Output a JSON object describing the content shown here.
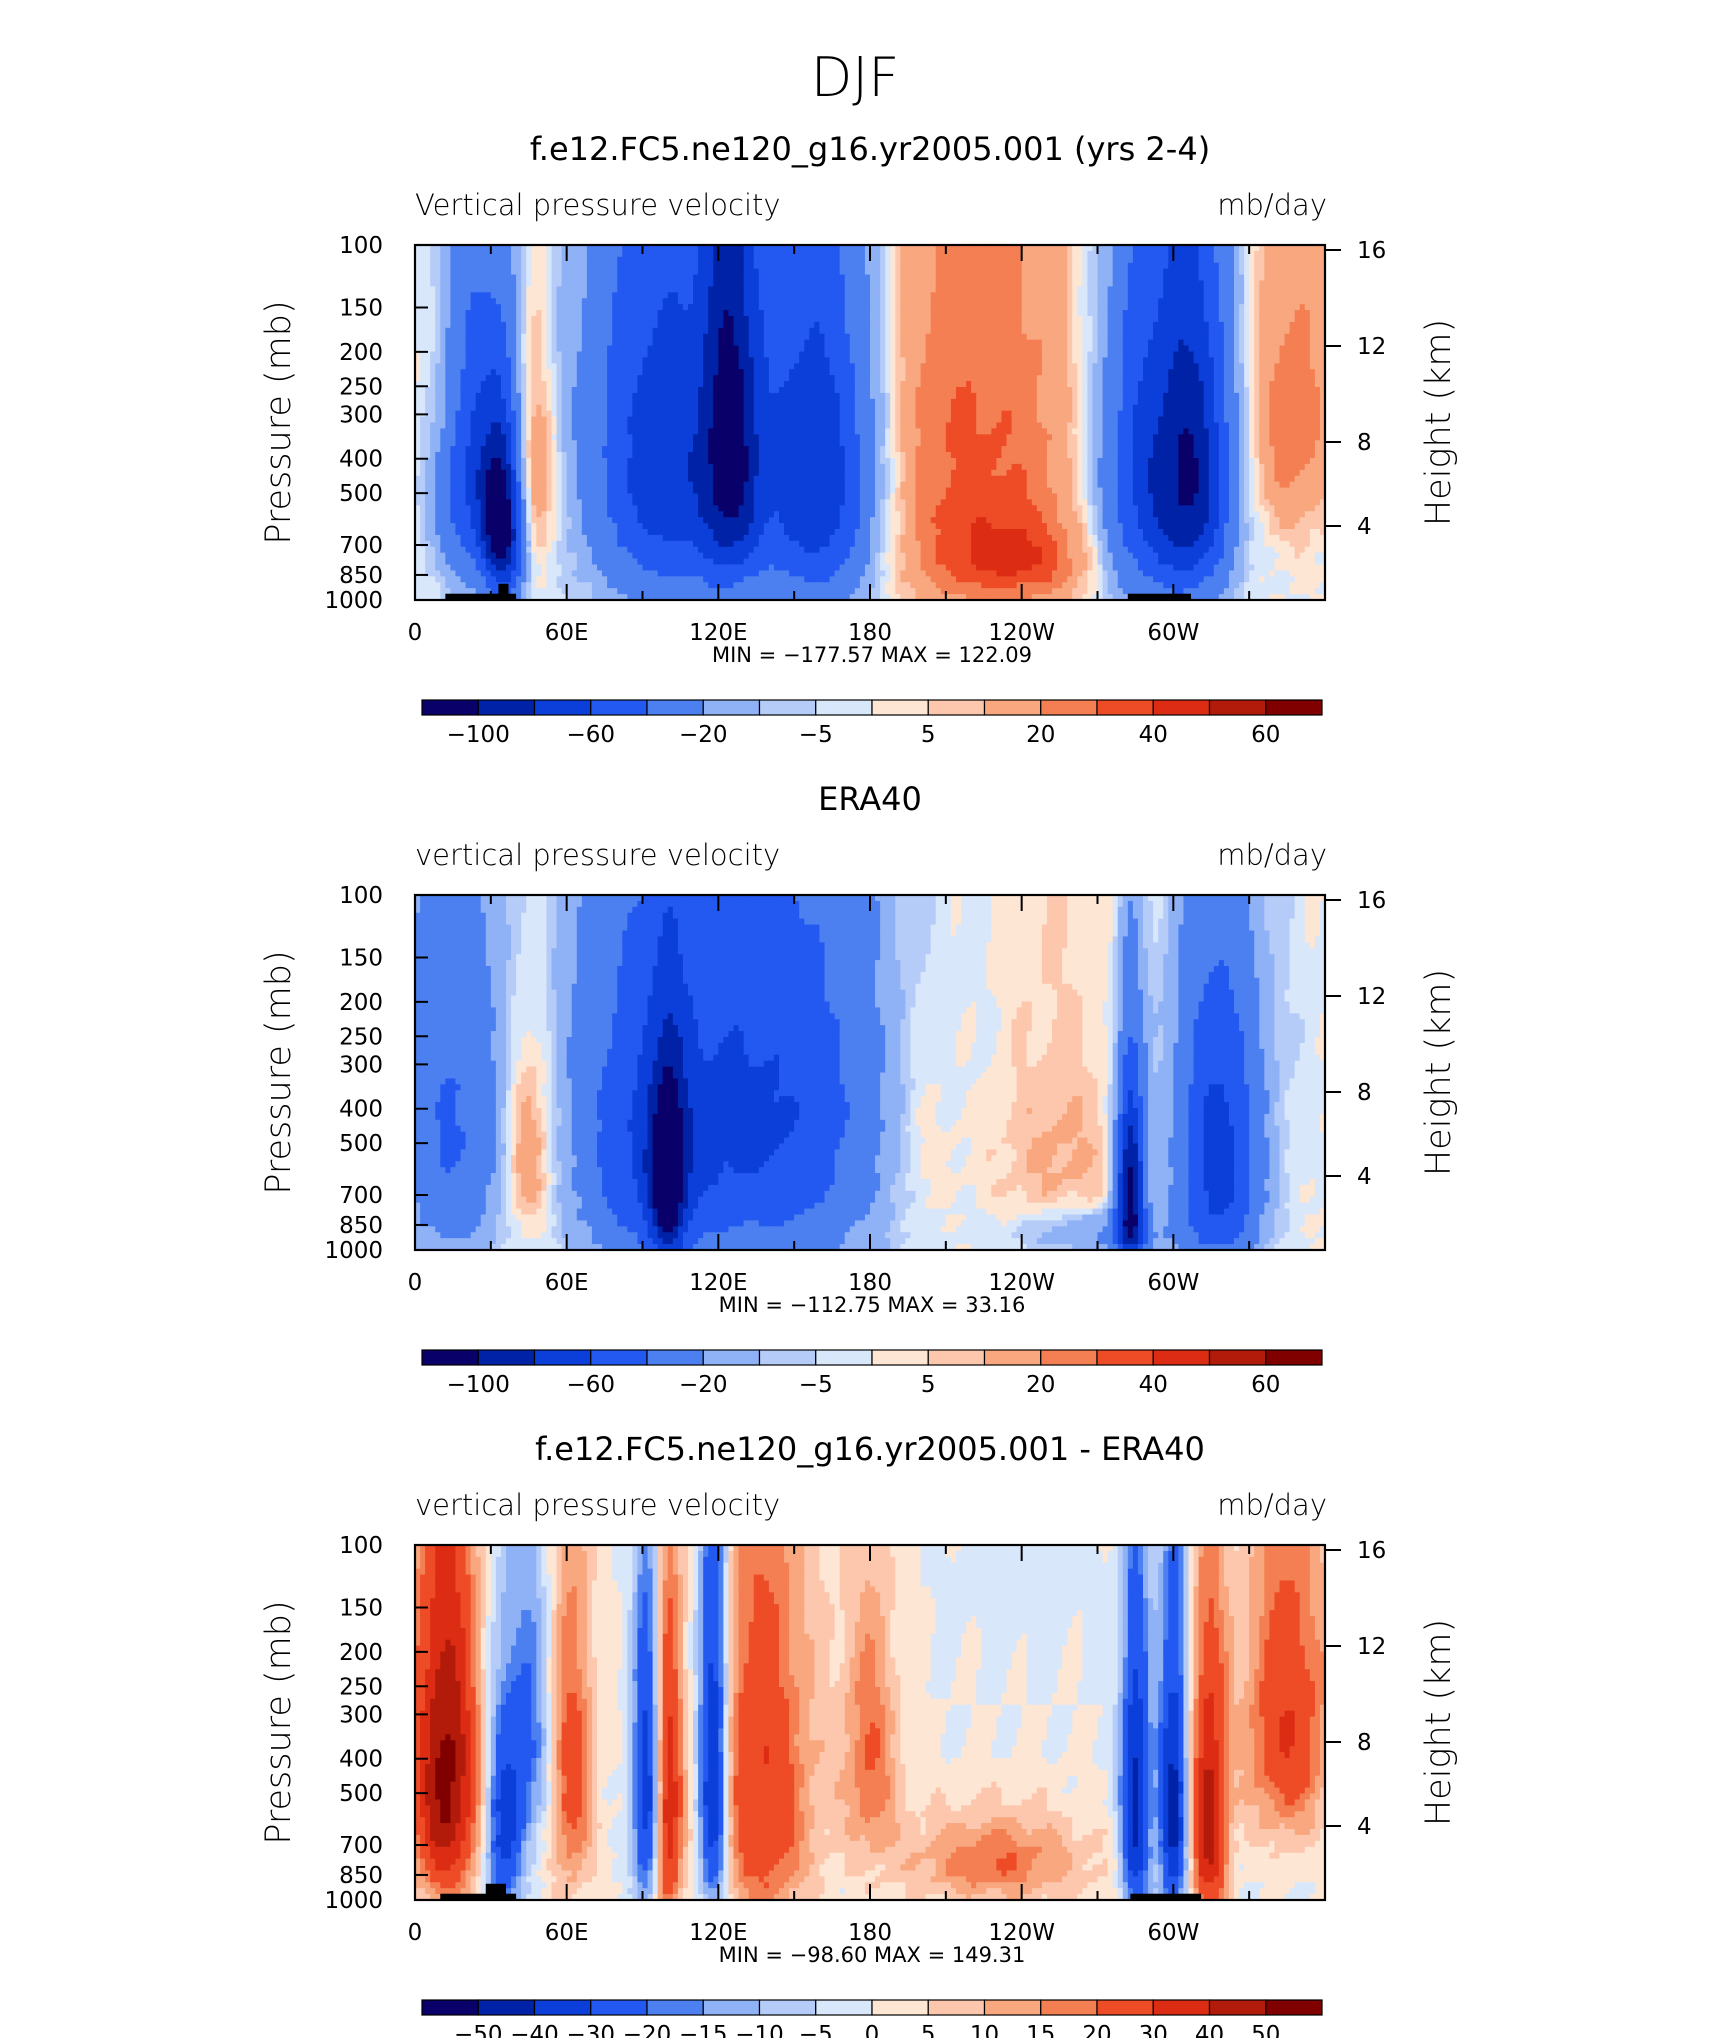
{
  "supertitle": "DJF",
  "colors": {
    "cb12": [
      "#09006a",
      "#0022a6",
      "#0c3ed9",
      "#2359f0",
      "#4c80f0",
      "#8fb1f5",
      "#b6ccf8",
      "#d9e7fb",
      "#fde6d3",
      "#fcc7ad",
      "#f8a77f",
      "#f47f52",
      "#ee4b27",
      "#dc2c13",
      "#b21a0a",
      "#800000"
    ],
    "cb16": [
      "#09006a",
      "#0022a6",
      "#0c3ed9",
      "#2359f0",
      "#4c80f0",
      "#8fb1f5",
      "#b6ccf8",
      "#d9e7fb",
      "#fde6d3",
      "#fcc7ad",
      "#f8a77f",
      "#f47f52",
      "#ee4b27",
      "#dc2c13",
      "#b21a0a",
      "#800000"
    ],
    "land": "#000000"
  },
  "chart_data": [
    {
      "type": "heatmap",
      "title": "f.e12.FC5.ne120_g16.yr2005.001 (yrs 2-4)",
      "left_label": "Vertical pressure velocity",
      "right_label": "mb/day",
      "ylabel": "Pressure (mb)",
      "y2label": "Height (km)",
      "x_ticks": [
        "0",
        "60E",
        "120E",
        "180",
        "120W",
        "60W"
      ],
      "y_ticks": [
        "100",
        "150",
        "200",
        "250",
        "300",
        "400",
        "500",
        "700",
        "850",
        "1000"
      ],
      "y2_ticks": [
        "16",
        "12",
        "8",
        "4"
      ],
      "min_max_text": "MIN = −177.57   MAX = 122.09",
      "colorbar_labels": [
        "−100",
        "−60",
        "−20",
        "−5",
        "5",
        "20",
        "40",
        "60"
      ],
      "colorbar_levels": [
        -120,
        -100,
        -80,
        -60,
        -40,
        -20,
        -10,
        -5,
        0,
        5,
        10,
        20,
        30,
        40,
        50,
        60
      ],
      "xlim": [
        0,
        360
      ],
      "ylim": [
        1000,
        100
      ],
      "features": [
        {
          "lon": 22,
          "lev": 420,
          "wx": 10,
          "wy": 300,
          "v": -60
        },
        {
          "lon": 35,
          "lev": 600,
          "wx": 6,
          "wy": 250,
          "v": -110
        },
        {
          "lon": 45,
          "lev": 450,
          "wx": 7,
          "wy": 230,
          "v": 35
        },
        {
          "lon": 12,
          "lev": 250,
          "wx": 10,
          "wy": 120,
          "v": 12
        },
        {
          "lon": 100,
          "lev": 420,
          "wx": 22,
          "wy": 380,
          "v": -75
        },
        {
          "lon": 125,
          "lev": 350,
          "wx": 8,
          "wy": 350,
          "v": -70
        },
        {
          "lon": 160,
          "lev": 450,
          "wx": 18,
          "wy": 380,
          "v": -85
        },
        {
          "lon": 218,
          "lev": 420,
          "wx": 38,
          "wy": 420,
          "v": 32
        },
        {
          "lon": 238,
          "lev": 780,
          "wx": 22,
          "wy": 150,
          "v": 25
        },
        {
          "lon": 292,
          "lev": 450,
          "wx": 16,
          "wy": 380,
          "v": -75
        },
        {
          "lon": 310,
          "lev": 450,
          "wx": 10,
          "wy": 330,
          "v": -60
        },
        {
          "lon": 347,
          "lev": 320,
          "wx": 12,
          "wy": 200,
          "v": 28
        },
        {
          "lon": 50,
          "lev": 200,
          "wx": 25,
          "wy": 150,
          "v": -4
        }
      ],
      "land": [
        {
          "lon0": 12,
          "lon1": 40,
          "lev_top": 960
        },
        {
          "lon0": 33,
          "lon1": 37,
          "lev_top": 900
        },
        {
          "lon0": 282,
          "lon1": 307,
          "lev_top": 960
        }
      ]
    },
    {
      "type": "heatmap",
      "title": "ERA40",
      "left_label": "vertical pressure velocity",
      "right_label": "mb/day",
      "ylabel": "Pressure (mb)",
      "y2label": "Height (km)",
      "x_ticks": [
        "0",
        "60E",
        "120E",
        "180",
        "120W",
        "60W"
      ],
      "y_ticks": [
        "100",
        "150",
        "200",
        "250",
        "300",
        "400",
        "500",
        "700",
        "850",
        "1000"
      ],
      "y2_ticks": [
        "16",
        "12",
        "8",
        "4"
      ],
      "min_max_text": "MIN = −112.75   MAX =   33.16",
      "colorbar_labels": [
        "−100",
        "−60",
        "−20",
        "−5",
        "5",
        "20",
        "40",
        "60"
      ],
      "colorbar_levels": [
        -120,
        -100,
        -80,
        -60,
        -40,
        -20,
        -10,
        -5,
        0,
        5,
        10,
        20,
        30,
        40,
        50,
        60
      ],
      "xlim": [
        0,
        360
      ],
      "ylim": [
        1000,
        100
      ],
      "features": [
        {
          "lon": 15,
          "lev": 500,
          "wx": 14,
          "wy": 380,
          "v": -40
        },
        {
          "lon": 45,
          "lev": 500,
          "wx": 7,
          "wy": 250,
          "v": 25
        },
        {
          "lon": 90,
          "lev": 550,
          "wx": 20,
          "wy": 400,
          "v": -45
        },
        {
          "lon": 100,
          "lev": 650,
          "wx": 5,
          "wy": 280,
          "v": -80
        },
        {
          "lon": 140,
          "lev": 450,
          "wx": 32,
          "wy": 420,
          "v": -60
        },
        {
          "lon": 200,
          "lev": 500,
          "wx": 10,
          "wy": 260,
          "v": 10
        },
        {
          "lon": 255,
          "lev": 500,
          "wx": 20,
          "wy": 360,
          "v": 12
        },
        {
          "lon": 283,
          "lev": 680,
          "wx": 4,
          "wy": 300,
          "v": -110
        },
        {
          "lon": 318,
          "lev": 580,
          "wx": 12,
          "wy": 380,
          "v": -70
        },
        {
          "lon": 268,
          "lev": 900,
          "wx": 22,
          "wy": 100,
          "v": -25
        },
        {
          "lon": 60,
          "lev": 220,
          "wx": 60,
          "wy": 200,
          "v": -6
        },
        {
          "lon": 290,
          "lev": 250,
          "wx": 50,
          "wy": 150,
          "v": -4
        }
      ],
      "land": []
    },
    {
      "type": "heatmap",
      "title": "f.e12.FC5.ne120_g16.yr2005.001 - ERA40",
      "left_label": "vertical pressure velocity",
      "right_label": "mb/day",
      "ylabel": "Pressure (mb)",
      "y2label": "Height (km)",
      "x_ticks": [
        "0",
        "60E",
        "120E",
        "180",
        "120W",
        "60W"
      ],
      "y_ticks": [
        "100",
        "150",
        "200",
        "250",
        "300",
        "400",
        "500",
        "700",
        "850",
        "1000"
      ],
      "y2_ticks": [
        "16",
        "12",
        "8",
        "4"
      ],
      "min_max_text": "MIN = −98.60   MAX = 149.31",
      "colorbar_labels": [
        "−50",
        "−40",
        "−30",
        "−20",
        "−15",
        "−10",
        "−5",
        "0",
        "5",
        "10",
        "15",
        "20",
        "30",
        "40",
        "50"
      ],
      "colorbar_levels": [
        -60,
        -50,
        -40,
        -30,
        -20,
        -15,
        -10,
        -5,
        0,
        5,
        10,
        15,
        20,
        30,
        40,
        50
      ],
      "xlim": [
        0,
        360
      ],
      "ylim": [
        1000,
        100
      ],
      "features": [
        {
          "lon": 12,
          "lev": 450,
          "wx": 9,
          "wy": 330,
          "v": 55
        },
        {
          "lon": 35,
          "lev": 650,
          "wx": 5,
          "wy": 300,
          "v": -35
        },
        {
          "lon": 45,
          "lev": 350,
          "wx": 6,
          "wy": 230,
          "v": -20
        },
        {
          "lon": 62,
          "lev": 450,
          "wx": 6,
          "wy": 320,
          "v": 25
        },
        {
          "lon": 92,
          "lev": 500,
          "wx": 4,
          "wy": 330,
          "v": -40
        },
        {
          "lon": 100,
          "lev": 550,
          "wx": 4,
          "wy": 360,
          "v": 40
        },
        {
          "lon": 118,
          "lev": 450,
          "wx": 4,
          "wy": 400,
          "v": -50
        },
        {
          "lon": 137,
          "lev": 500,
          "wx": 14,
          "wy": 420,
          "v": 30
        },
        {
          "lon": 180,
          "lev": 400,
          "wx": 8,
          "wy": 230,
          "v": 20
        },
        {
          "lon": 230,
          "lev": 780,
          "wx": 25,
          "wy": 160,
          "v": 20
        },
        {
          "lon": 285,
          "lev": 550,
          "wx": 4,
          "wy": 360,
          "v": -45
        },
        {
          "lon": 300,
          "lev": 550,
          "wx": 4,
          "wy": 360,
          "v": -45
        },
        {
          "lon": 314,
          "lev": 600,
          "wx": 5,
          "wy": 360,
          "v": 45
        },
        {
          "lon": 345,
          "lev": 320,
          "wx": 12,
          "wy": 220,
          "v": 30
        },
        {
          "lon": 240,
          "lev": 130,
          "wx": 18,
          "wy": 60,
          "v": -3
        }
      ],
      "land": [
        {
          "lon0": 10,
          "lon1": 40,
          "lev_top": 960
        },
        {
          "lon0": 28,
          "lon1": 36,
          "lev_top": 900
        },
        {
          "lon0": 283,
          "lon1": 311,
          "lev_top": 960
        }
      ]
    }
  ]
}
